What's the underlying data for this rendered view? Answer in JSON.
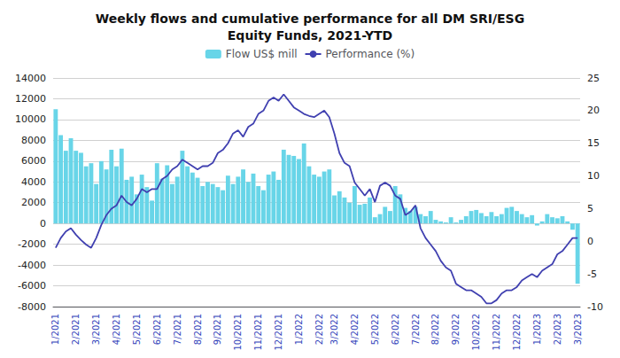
{
  "chart_data": {
    "type": "bar",
    "title": "Weekly flows and cumulative performance for all DM SRI/ESG\nEquity Funds, 2021-YTD",
    "categories": [
      "1/2021",
      null,
      null,
      null,
      "2/2021",
      null,
      null,
      null,
      "3/2021",
      null,
      null,
      null,
      "4/2021",
      null,
      null,
      null,
      "5/2021",
      null,
      null,
      null,
      "6/2021",
      null,
      null,
      null,
      "7/2021",
      null,
      null,
      null,
      "8/2021",
      null,
      null,
      null,
      "9/2021",
      null,
      null,
      null,
      "10/2021",
      null,
      null,
      null,
      "11/2021",
      null,
      null,
      null,
      "12/2021",
      null,
      null,
      null,
      "1/2022",
      null,
      null,
      null,
      "2/2022",
      null,
      null,
      "3/2022",
      null,
      null,
      null,
      "4/2022",
      null,
      null,
      null,
      "5/2022",
      null,
      null,
      null,
      "6/2022",
      null,
      null,
      null,
      "7/2022",
      null,
      null,
      null,
      "8/2022",
      null,
      null,
      null,
      "9/2022",
      null,
      null,
      null,
      "10/2022",
      null,
      null,
      null,
      "11/2022",
      null,
      null,
      null,
      "12/2022",
      null,
      null,
      null,
      "1/2023",
      null,
      null,
      null,
      "2/2023",
      null,
      null,
      null,
      "3/2023"
    ],
    "series": [
      {
        "name": "Flow US$ mill",
        "type": "bar",
        "color": "#68d5e8",
        "values": [
          11000,
          8500,
          7000,
          8200,
          7000,
          6800,
          5500,
          5800,
          3800,
          6000,
          5200,
          7100,
          5500,
          7200,
          4200,
          4500,
          2800,
          4700,
          3500,
          2200,
          5800,
          4300,
          5600,
          3800,
          4500,
          7000,
          5500,
          4900,
          4400,
          3600,
          4000,
          3800,
          3500,
          3200,
          4600,
          3800,
          4500,
          5200,
          4000,
          4800,
          3600,
          3200,
          4700,
          5000,
          4200,
          7100,
          6600,
          6500,
          6200,
          7700,
          5500,
          4700,
          4500,
          5000,
          5200,
          2700,
          3100,
          2500,
          2000,
          3600,
          1800,
          1900,
          2500,
          600,
          900,
          1600,
          1200,
          3600,
          2800,
          1500,
          1200,
          1600,
          900,
          700,
          1200,
          350,
          200,
          100,
          600,
          100,
          350,
          700,
          1200,
          1300,
          1000,
          700,
          1100,
          700,
          900,
          1500,
          1600,
          1200,
          900,
          600,
          800,
          -200,
          200,
          900,
          600,
          500,
          700,
          200,
          -600,
          -5800
        ]
      },
      {
        "name": "Performance (%)",
        "type": "line",
        "color": "#4040b0",
        "axis": "y2",
        "values": [
          -1.0,
          0.5,
          1.5,
          2.0,
          1.0,
          0.2,
          -0.5,
          -1.0,
          0.5,
          2.5,
          4.0,
          5.0,
          5.5,
          7.0,
          6.0,
          5.5,
          6.5,
          8.0,
          7.5,
          8.0,
          8.0,
          9.5,
          10.0,
          11.0,
          11.5,
          12.5,
          12.0,
          11.5,
          11.0,
          11.5,
          11.5,
          12.0,
          13.5,
          14.0,
          15.0,
          16.5,
          17.0,
          16.0,
          17.5,
          18.0,
          19.5,
          20.0,
          21.5,
          22.0,
          21.5,
          22.5,
          21.5,
          20.5,
          20.0,
          19.5,
          19.2,
          19.0,
          19.5,
          20.0,
          19.0,
          16.5,
          13.5,
          12.0,
          11.5,
          9.0,
          8.0,
          7.0,
          8.0,
          6.0,
          8.5,
          9.0,
          8.5,
          7.0,
          6.5,
          4.0,
          4.5,
          5.5,
          2.0,
          0.5,
          -0.5,
          -1.5,
          -3.0,
          -4.0,
          -4.5,
          -6.5,
          -7.0,
          -7.5,
          -7.5,
          -8.0,
          -8.5,
          -9.5,
          -9.5,
          -9.0,
          -8.0,
          -7.5,
          -7.5,
          -7.0,
          -6.0,
          -5.5,
          -5.0,
          -5.5,
          -4.5,
          -4.0,
          -3.5,
          -2.0,
          -1.5,
          -0.5,
          0.5,
          0.5
        ]
      }
    ],
    "ylim": [
      -8000,
      14000
    ],
    "yticks": [
      -8000,
      -6000,
      -4000,
      -2000,
      0,
      2000,
      4000,
      6000,
      8000,
      10000,
      12000,
      14000
    ],
    "y2lim": [
      -10,
      25
    ],
    "y2ticks": [
      -10,
      -5,
      0,
      5,
      10,
      15,
      20,
      25
    ],
    "grid": true,
    "legend": "top"
  }
}
